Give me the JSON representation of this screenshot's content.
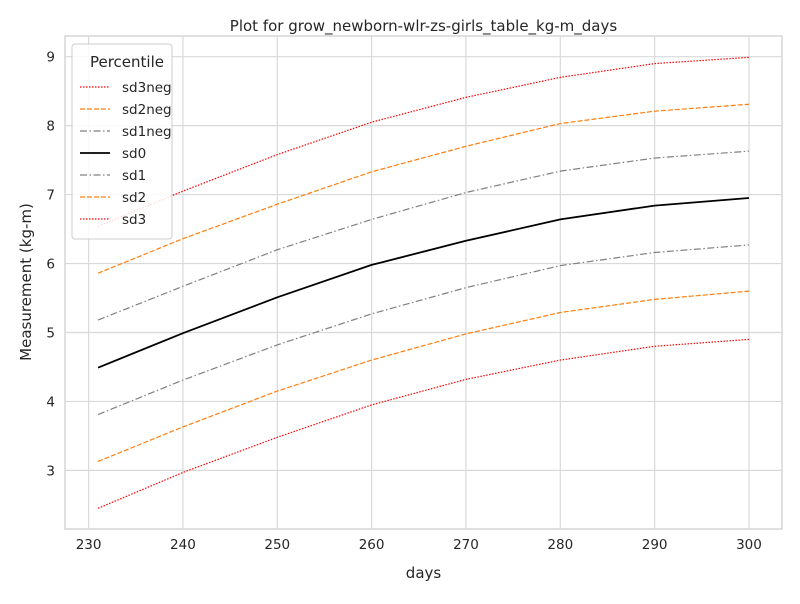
{
  "chart_data": {
    "type": "line",
    "title": "Plot for grow_newborn-wlr-zs-girls_table_kg-m_days",
    "xlabel": "days",
    "ylabel": "Measurement (kg-m)",
    "xlim": [
      227.5,
      303.5
    ],
    "ylim": [
      2.15,
      9.3
    ],
    "xticks": [
      230,
      240,
      250,
      260,
      270,
      280,
      290,
      300
    ],
    "yticks": [
      3,
      4,
      5,
      6,
      7,
      8,
      9
    ],
    "grid": true,
    "legend": {
      "title": "Percentile",
      "placement": "top-left"
    },
    "x": [
      231,
      240,
      250,
      260,
      270,
      280,
      290,
      300
    ],
    "series": [
      {
        "name": "sd3neg",
        "color": "#ff0000",
        "dash": "dotted",
        "values": [
          2.45,
          2.97,
          3.48,
          3.95,
          4.32,
          4.6,
          4.8,
          4.9
        ]
      },
      {
        "name": "sd2neg",
        "color": "#ff7f0e",
        "dash": "dashed",
        "values": [
          3.13,
          3.63,
          4.15,
          4.6,
          4.98,
          5.29,
          5.48,
          5.6
        ]
      },
      {
        "name": "sd1neg",
        "color": "#808080",
        "dash": "dashdot",
        "values": [
          3.81,
          4.31,
          4.82,
          5.27,
          5.65,
          5.97,
          6.16,
          6.27
        ]
      },
      {
        "name": "sd0",
        "color": "#000000",
        "dash": "solid",
        "values": [
          4.49,
          4.99,
          5.51,
          5.98,
          6.33,
          6.64,
          6.84,
          6.95
        ]
      },
      {
        "name": "sd1",
        "color": "#808080",
        "dash": "dashdot",
        "values": [
          5.18,
          5.67,
          6.2,
          6.64,
          7.03,
          7.34,
          7.53,
          7.63
        ]
      },
      {
        "name": "sd2",
        "color": "#ff7f0e",
        "dash": "dashed",
        "values": [
          5.86,
          6.36,
          6.86,
          7.33,
          7.7,
          8.03,
          8.21,
          8.31
        ]
      },
      {
        "name": "sd3",
        "color": "#ff0000",
        "dash": "dotted",
        "values": [
          6.54,
          7.05,
          7.58,
          8.05,
          8.41,
          8.7,
          8.9,
          8.99
        ]
      }
    ]
  }
}
